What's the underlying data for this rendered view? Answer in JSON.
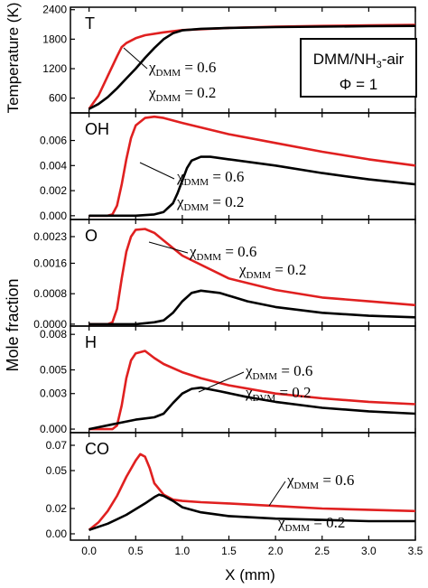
{
  "figure": {
    "y_label_temperature": "Temperature (K)",
    "y_label_mole_fraction": "Mole fraction",
    "x_label": "X (mm)",
    "x_ticks": [
      "0.0",
      "0.5",
      "1.0",
      "1.5",
      "2.0",
      "2.5",
      "3.0",
      "3.5"
    ],
    "legend_box": {
      "line1": "DMM/NH",
      "line1_sub": "3",
      "line1_suffix": "-air",
      "line2": "Φ = 1"
    },
    "series_colors": {
      "chi_0.6": "#e02020",
      "chi_0.2": "#000000"
    }
  },
  "chart_data": [
    {
      "type": "line",
      "panel_label": "T",
      "xlim": [
        -0.2,
        3.5
      ],
      "ylim": [
        300,
        2450
      ],
      "y_ticks": [
        "600",
        "1200",
        "1800",
        "2400"
      ],
      "annotations": [
        {
          "text": "χ",
          "sub": "DMM",
          "value": " = 0.6"
        },
        {
          "text": "χ",
          "sub": "DMM",
          "value": " = 0.2"
        }
      ],
      "series": [
        {
          "x": [
            0,
            0.1,
            0.2,
            0.3,
            0.35,
            0.4,
            0.5,
            0.6,
            0.8,
            1.0,
            1.5,
            2.0,
            2.5,
            3.0,
            3.5
          ],
          "y": [
            380,
            650,
            1050,
            1450,
            1640,
            1720,
            1820,
            1880,
            1940,
            1985,
            2030,
            2055,
            2070,
            2080,
            2090
          ]
        },
        {
          "x": [
            0,
            0.1,
            0.2,
            0.3,
            0.4,
            0.5,
            0.6,
            0.7,
            0.8,
            0.9,
            1.0,
            1.2,
            1.5,
            2.0,
            2.5,
            3.0,
            3.5
          ],
          "y": [
            380,
            480,
            620,
            800,
            1000,
            1200,
            1420,
            1620,
            1800,
            1920,
            1980,
            2010,
            2030,
            2045,
            2055,
            2065,
            2070
          ]
        }
      ]
    },
    {
      "type": "line",
      "panel_label": "OH",
      "xlim": [
        -0.2,
        3.5
      ],
      "ylim": [
        -0.0003,
        0.0082
      ],
      "y_ticks": [
        "0.000",
        "0.002",
        "0.004",
        "0.006"
      ],
      "annotations": [
        {
          "text": "χ",
          "sub": "DMM",
          "value": " = 0.6"
        },
        {
          "text": "χ",
          "sub": "DMM",
          "value": " = 0.2"
        }
      ],
      "series": [
        {
          "x": [
            0,
            0.2,
            0.25,
            0.3,
            0.35,
            0.4,
            0.45,
            0.5,
            0.6,
            0.7,
            0.8,
            1.0,
            1.5,
            2.0,
            2.5,
            3.0,
            3.5
          ],
          "y": [
            0,
            0,
            0.0001,
            0.0008,
            0.0025,
            0.0045,
            0.0062,
            0.0072,
            0.0078,
            0.0079,
            0.0078,
            0.0074,
            0.0065,
            0.0058,
            0.0051,
            0.0045,
            0.004
          ]
        },
        {
          "x": [
            0,
            0.5,
            0.7,
            0.8,
            0.9,
            0.95,
            1.0,
            1.05,
            1.1,
            1.2,
            1.3,
            1.5,
            2.0,
            2.5,
            3.0,
            3.5
          ],
          "y": [
            0,
            0,
            0.0001,
            0.0003,
            0.001,
            0.0018,
            0.0028,
            0.0038,
            0.0044,
            0.0047,
            0.0047,
            0.0045,
            0.004,
            0.0034,
            0.0029,
            0.0025
          ]
        }
      ]
    },
    {
      "type": "line",
      "panel_label": "O",
      "xlim": [
        -0.2,
        3.5
      ],
      "ylim": [
        -5e-05,
        0.00275
      ],
      "y_ticks": [
        "0.0000",
        "0.0008",
        "0.0016",
        "0.0023"
      ],
      "annotations": [
        {
          "text": "χ",
          "sub": "DMM",
          "value": " = 0.6"
        },
        {
          "text": "χ",
          "sub": "DMM",
          "value": " = 0.2"
        }
      ],
      "series": [
        {
          "x": [
            0,
            0.2,
            0.25,
            0.3,
            0.35,
            0.4,
            0.45,
            0.5,
            0.6,
            0.7,
            0.8,
            1.0,
            1.5,
            2.0,
            2.5,
            3.0,
            3.5
          ],
          "y": [
            0,
            0,
            5e-05,
            0.0004,
            0.0012,
            0.0019,
            0.0023,
            0.00248,
            0.0025,
            0.0024,
            0.0022,
            0.0018,
            0.0012,
            0.0009,
            0.0007,
            0.0006,
            0.0005
          ]
        },
        {
          "x": [
            0,
            0.5,
            0.7,
            0.8,
            0.9,
            1.0,
            1.1,
            1.2,
            1.4,
            1.7,
            2.0,
            2.5,
            3.0,
            3.5
          ],
          "y": [
            0,
            0,
            5e-05,
            0.0001,
            0.0003,
            0.0006,
            0.00082,
            0.00088,
            0.00082,
            0.0006,
            0.00045,
            0.0003,
            0.00022,
            0.00018
          ]
        }
      ]
    },
    {
      "type": "line",
      "panel_label": "H",
      "xlim": [
        -0.2,
        3.5
      ],
      "ylim": [
        -0.0003,
        0.0087
      ],
      "y_ticks": [
        "0.000",
        "0.003",
        "0.005",
        "0.008"
      ],
      "annotations": [
        {
          "text": "χ",
          "sub": "DMM",
          "value": " = 0.6"
        },
        {
          "text": "χ",
          "sub": "DVM",
          "value": " = 0.2"
        }
      ],
      "series": [
        {
          "x": [
            0,
            0.25,
            0.3,
            0.35,
            0.4,
            0.45,
            0.5,
            0.6,
            0.7,
            0.8,
            1.0,
            1.2,
            1.5,
            2.0,
            2.5,
            3.0,
            3.5
          ],
          "y": [
            0,
            0,
            0.0003,
            0.002,
            0.0043,
            0.0058,
            0.0064,
            0.0066,
            0.006,
            0.0055,
            0.0048,
            0.0043,
            0.0037,
            0.003,
            0.0026,
            0.0023,
            0.0021
          ]
        },
        {
          "x": [
            0,
            0.5,
            0.6,
            0.7,
            0.8,
            0.9,
            1.0,
            1.1,
            1.2,
            1.4,
            1.7,
            2.0,
            2.5,
            3.0,
            3.5
          ],
          "y": [
            0,
            0.0008,
            0.0009,
            0.001,
            0.0013,
            0.0022,
            0.003,
            0.0034,
            0.0035,
            0.0032,
            0.0027,
            0.0023,
            0.0018,
            0.0015,
            0.0013
          ]
        }
      ]
    },
    {
      "type": "line",
      "panel_label": "CO",
      "xlim": [
        -0.2,
        3.5
      ],
      "ylim": [
        -0.005,
        0.08
      ],
      "y_ticks": [
        "0.00",
        "0.02",
        "0.05",
        "0.07"
      ],
      "annotations": [
        {
          "text": "χ",
          "sub": "DMM",
          "value": " = 0.6"
        },
        {
          "text": "χ",
          "sub": "DMM",
          "value": " = 0.2"
        }
      ],
      "series": [
        {
          "x": [
            0,
            0.1,
            0.2,
            0.3,
            0.4,
            0.5,
            0.55,
            0.6,
            0.65,
            0.7,
            0.8,
            0.9,
            1.0,
            1.2,
            1.5,
            2.0,
            2.5,
            3.0,
            3.5
          ],
          "y": [
            0.003,
            0.009,
            0.018,
            0.03,
            0.045,
            0.058,
            0.063,
            0.061,
            0.052,
            0.04,
            0.031,
            0.027,
            0.026,
            0.025,
            0.024,
            0.022,
            0.02,
            0.019,
            0.018
          ]
        },
        {
          "x": [
            0,
            0.2,
            0.4,
            0.6,
            0.7,
            0.75,
            0.8,
            0.9,
            1.0,
            1.2,
            1.5,
            2.0,
            2.5,
            3.0,
            3.5
          ],
          "y": [
            0.003,
            0.008,
            0.015,
            0.024,
            0.029,
            0.031,
            0.03,
            0.026,
            0.021,
            0.017,
            0.014,
            0.012,
            0.011,
            0.01,
            0.01
          ]
        }
      ]
    }
  ]
}
